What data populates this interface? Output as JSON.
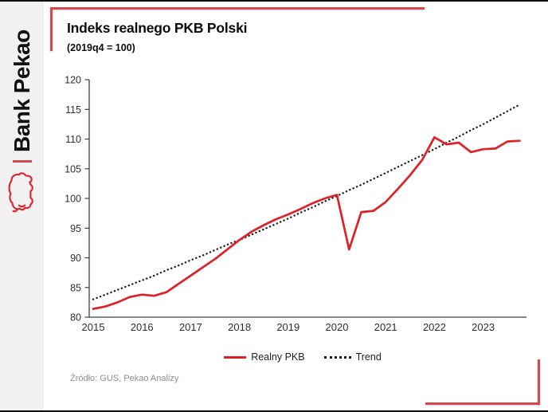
{
  "page": {
    "source_note": "Źródło: GUS, Pekao Analizy"
  },
  "branding": {
    "bank_name": "Bank Pekao",
    "logo_icon": "bison-icon",
    "brand_red": "#df2127",
    "frame_red": "#d4494e",
    "sidebar_gray": "#f1f1f2"
  },
  "chart_data": {
    "type": "line",
    "title": "Indeks realnego PKB Polski",
    "subtitle": "(2019q4 = 100)",
    "frequency": "quarterly",
    "x_start": "2015q1",
    "x_end": "2023q4",
    "x_tick_labels": [
      "2015",
      "2016",
      "2017",
      "2018",
      "2019",
      "2020",
      "2021",
      "2022",
      "2023"
    ],
    "y_tick_labels": [
      "80",
      "85",
      "90",
      "95",
      "100",
      "105",
      "110",
      "115",
      "120"
    ],
    "ylim": [
      80,
      120
    ],
    "y_tick_step": 5,
    "grid": false,
    "legend_position": "bottom",
    "series": [
      {
        "name": "Realny PKB",
        "style": "solid",
        "color": "#df2127",
        "values": [
          81.4,
          81.8,
          82.5,
          83.4,
          83.8,
          83.6,
          84.2,
          85.6,
          87.0,
          88.4,
          89.8,
          91.4,
          93.0,
          94.4,
          95.5,
          96.5,
          97.3,
          98.2,
          99.2,
          100.0,
          100.6,
          91.4,
          97.7,
          97.9,
          99.4,
          101.6,
          103.9,
          106.5,
          110.3,
          109.1,
          109.4,
          107.8,
          108.3,
          108.4,
          109.6,
          109.7
        ]
      },
      {
        "name": "Trend",
        "style": "dotted",
        "color": "#1a1a1a",
        "values": [
          83.0,
          83.8,
          84.6,
          85.4,
          86.2,
          87.0,
          87.9,
          88.7,
          89.6,
          90.4,
          91.3,
          92.2,
          93.0,
          93.9,
          94.8,
          95.7,
          96.6,
          97.6,
          98.5,
          99.5,
          100.4,
          101.4,
          102.3,
          103.3,
          104.3,
          105.3,
          106.3,
          107.3,
          108.3,
          109.4,
          110.4,
          111.5,
          112.5,
          113.6,
          114.7,
          115.8
        ]
      }
    ]
  }
}
